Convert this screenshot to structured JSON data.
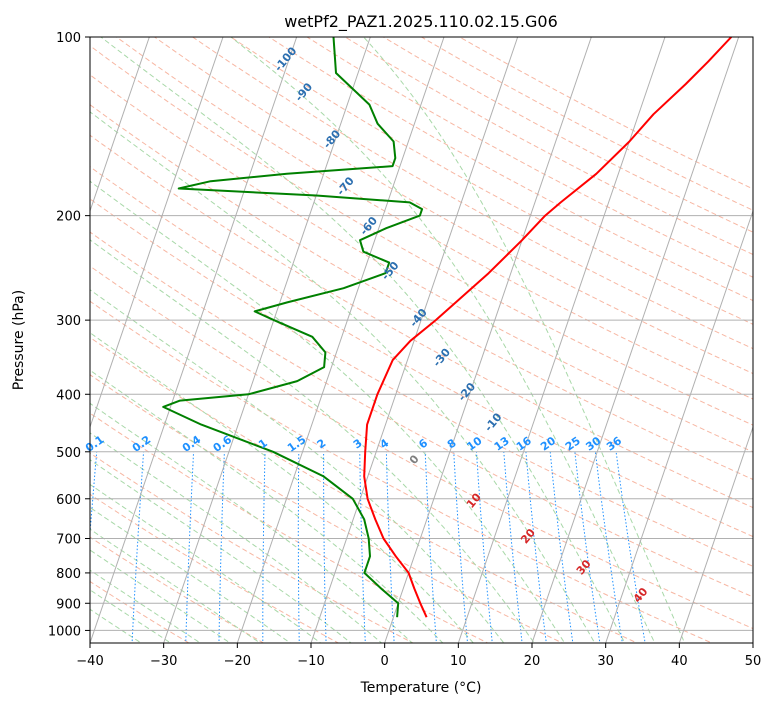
{
  "chart_data": {
    "type": "line",
    "subtype": "skew-t log-p diagram",
    "title": "wetPf2_PAZ1.2025.110.02.15.G06",
    "xlabel": "Temperature (°C)",
    "ylabel": "Pressure (hPa)",
    "xlim": [
      -40,
      50
    ],
    "ylim": [
      1050,
      100
    ],
    "y_scale": "log",
    "x_ticks": [
      -40,
      -30,
      -20,
      -10,
      0,
      10,
      20,
      30,
      40,
      50
    ],
    "y_ticks": [
      100,
      200,
      300,
      400,
      500,
      600,
      700,
      800,
      900,
      1000
    ],
    "grid": true,
    "colors": {
      "temperature": "#ff0000",
      "dewpoint": "#008000",
      "isotherm": "#b0b0b0",
      "grid": "#b0b0b0",
      "dry_adiabat": "#f7b7a3",
      "moist_adiabat": "#a8d8a8",
      "mixing_ratio": "#1e90ff",
      "saturated_adiabat_label": "#2c6fb0",
      "moist_label_positive": "#d62728",
      "moist_label_zero": "#7f7f7f"
    },
    "series": [
      {
        "key": "temperature",
        "color": "#ff0000",
        "points": [
          [
            4.5,
            950
          ],
          [
            3.0,
            900
          ],
          [
            1.5,
            850
          ],
          [
            0.0,
            800
          ],
          [
            -2.5,
            750
          ],
          [
            -5.0,
            700
          ],
          [
            -7.0,
            650
          ],
          [
            -9.0,
            600
          ],
          [
            -10.5,
            550
          ],
          [
            -11.5,
            500
          ],
          [
            -12.5,
            450
          ],
          [
            -12.5,
            400
          ],
          [
            -12.0,
            350
          ],
          [
            -10.5,
            325
          ],
          [
            -8.0,
            300
          ],
          [
            -3.0,
            250
          ],
          [
            0.0,
            220
          ],
          [
            2.0,
            200
          ],
          [
            3.5,
            190
          ],
          [
            7.0,
            170
          ],
          [
            10.0,
            150
          ],
          [
            12.0,
            135
          ],
          [
            15.0,
            120
          ],
          [
            17.0,
            110
          ],
          [
            19.0,
            100
          ]
        ]
      },
      {
        "key": "dewpoint",
        "color": "#008000",
        "points": [
          [
            0.5,
            950
          ],
          [
            0.0,
            900
          ],
          [
            -3.0,
            850
          ],
          [
            -6.0,
            800
          ],
          [
            -6.0,
            750
          ],
          [
            -7.0,
            700
          ],
          [
            -8.5,
            650
          ],
          [
            -11.0,
            600
          ],
          [
            -16.0,
            550
          ],
          [
            -24.0,
            500
          ],
          [
            -35.0,
            450
          ],
          [
            -41.0,
            420
          ],
          [
            -39.0,
            410
          ],
          [
            -30.0,
            400
          ],
          [
            -24.0,
            380
          ],
          [
            -21.0,
            360
          ],
          [
            -21.5,
            340
          ],
          [
            -24.0,
            320
          ],
          [
            -30.0,
            300
          ],
          [
            -33.0,
            290
          ],
          [
            -29.0,
            280
          ],
          [
            -22.0,
            265
          ],
          [
            -17.0,
            250
          ],
          [
            -17.0,
            240
          ],
          [
            -21.0,
            230
          ],
          [
            -22.0,
            220
          ],
          [
            -19.0,
            210
          ],
          [
            -15.0,
            200
          ],
          [
            -15.0,
            195
          ],
          [
            -17.0,
            190
          ],
          [
            -30.0,
            185
          ],
          [
            -49.0,
            180
          ],
          [
            -45.0,
            175
          ],
          [
            -35.0,
            170
          ],
          [
            -21.0,
            165
          ],
          [
            -21.0,
            160
          ],
          [
            -22.0,
            150
          ],
          [
            -25.0,
            140
          ],
          [
            -27.0,
            130
          ],
          [
            -33.0,
            115
          ],
          [
            -35.0,
            100
          ]
        ]
      }
    ],
    "saturated_adiabat_labels": [
      "-100",
      "-90",
      "-80",
      "-70",
      "-60",
      "-50",
      "-40",
      "-30",
      "-20",
      "-10"
    ],
    "mixing_ratio_labels": [
      "0.1",
      "0.2",
      "0.4",
      "0.6",
      "1",
      "1.5",
      "2",
      "3",
      "4",
      "6",
      "8",
      "10",
      "13",
      "16",
      "20",
      "25",
      "30",
      "36"
    ],
    "moist_adiabat_labels": [
      "0",
      "10",
      "20",
      "30",
      "40"
    ]
  }
}
